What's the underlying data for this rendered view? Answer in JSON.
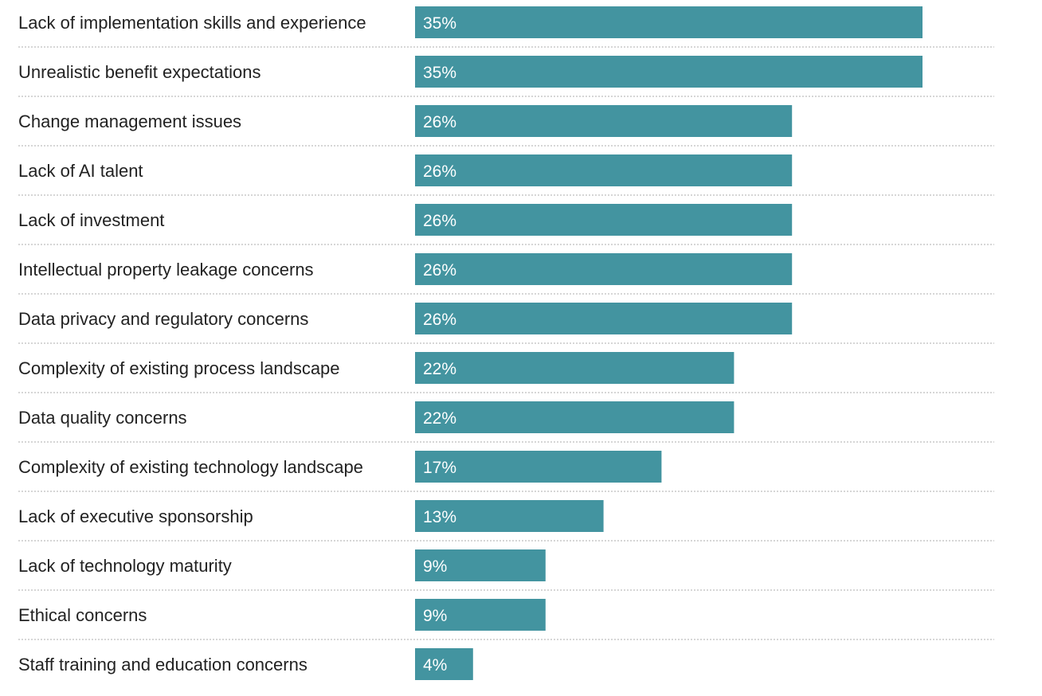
{
  "chart_data": {
    "type": "bar",
    "orientation": "horizontal",
    "categories": [
      "Lack of implementation skills and experience",
      "Unrealistic benefit expectations",
      "Change management issues",
      "Lack of AI talent",
      "Lack of investment",
      "Intellectual property leakage concerns",
      "Data privacy and regulatory concerns",
      "Complexity of existing process landscape",
      "Data quality concerns",
      "Complexity of existing technology landscape",
      "Lack of executive sponsorship",
      "Lack of technology maturity",
      "Ethical concerns",
      "Staff training and education concerns"
    ],
    "values": [
      35,
      35,
      26,
      26,
      26,
      26,
      26,
      22,
      22,
      17,
      13,
      9,
      9,
      4
    ],
    "value_labels": [
      "35%",
      "35%",
      "26%",
      "26%",
      "26%",
      "26%",
      "26%",
      "22%",
      "22%",
      "17%",
      "13%",
      "9%",
      "9%",
      "4%"
    ],
    "bar_color": "#4394a0",
    "title": "",
    "xlabel": "",
    "ylabel": "",
    "grid": false,
    "legend": "none"
  }
}
